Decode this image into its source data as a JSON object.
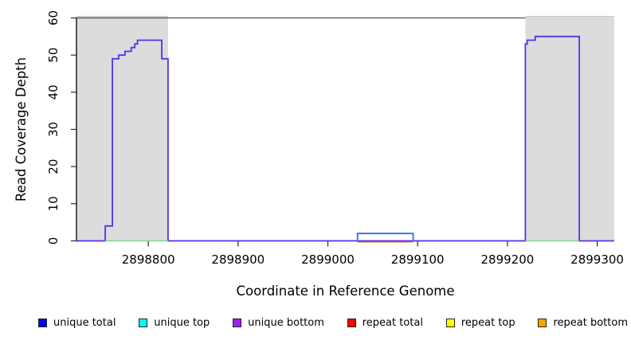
{
  "figure": {
    "background": "#ffffff"
  },
  "chart_data": {
    "type": "line",
    "subtype": "step-coverage",
    "title": "",
    "xlabel": "Coordinate in Reference Genome",
    "ylabel": "Read Coverage Depth",
    "xlim": [
      2898720,
      2899319
    ],
    "ylim": [
      0,
      60
    ],
    "x_ticks": [
      2898800,
      2898900,
      2899000,
      2899100,
      2899200,
      2899300
    ],
    "y_ticks": [
      0,
      10,
      20,
      30,
      40,
      50,
      60
    ],
    "grid": false,
    "axis_color": "#000000",
    "tick_color": "#2b2b2b",
    "shaded_region_color": "#dcdcdc",
    "shaded_regions": [
      {
        "x0": 2898720,
        "x1": 2898822
      },
      {
        "x0": 2899220,
        "x1": 2899319
      }
    ],
    "max_coverage_line": {
      "y": 60,
      "color": "#4d4d4d"
    },
    "series": [
      {
        "name": "unique coverage step line",
        "color": "#5431e9",
        "vertices": [
          [
            2898720,
            0
          ],
          [
            2898752,
            0
          ],
          [
            2898752,
            4
          ],
          [
            2898760,
            4
          ],
          [
            2898760,
            49
          ],
          [
            2898767,
            49
          ],
          [
            2898767,
            50
          ],
          [
            2898774,
            50
          ],
          [
            2898774,
            51
          ],
          [
            2898781,
            51
          ],
          [
            2898781,
            52
          ],
          [
            2898785,
            52
          ],
          [
            2898785,
            53
          ],
          [
            2898788,
            53
          ],
          [
            2898788,
            54
          ],
          [
            2898815,
            54
          ],
          [
            2898815,
            49
          ],
          [
            2898822,
            49
          ],
          [
            2898822,
            0
          ],
          [
            2899220,
            0
          ],
          [
            2899220,
            53
          ],
          [
            2899222,
            53
          ],
          [
            2899222,
            54
          ],
          [
            2899231,
            54
          ],
          [
            2899231,
            55
          ],
          [
            2899280,
            55
          ],
          [
            2899280,
            0
          ],
          [
            2899319,
            0
          ]
        ]
      },
      {
        "name": "unique top coverage segment",
        "color": "#2c6fee",
        "vertices": [
          [
            2899033,
            0
          ],
          [
            2899033,
            2
          ],
          [
            2899095,
            2
          ],
          [
            2899095,
            0
          ]
        ]
      }
    ],
    "zero_level_markers": [
      {
        "name": "repeat total zero segment",
        "color": "#e03c3c",
        "x0": 2899033,
        "x1": 2899095,
        "offset": 1.1
      },
      {
        "name": "zero segment under left peak",
        "color": "#85d485",
        "x0": 2898752,
        "x1": 2898822,
        "offset": 0
      },
      {
        "name": "zero segment under right peak",
        "color": "#85d485",
        "x0": 2899220,
        "x1": 2899280,
        "offset": 0
      }
    ],
    "legend": {
      "position": "bottom",
      "items": [
        {
          "label": "unique total",
          "color": "#0000ff"
        },
        {
          "label": "unique top",
          "color": "#00ffff"
        },
        {
          "label": "unique bottom",
          "color": "#a020f0"
        },
        {
          "label": "repeat total",
          "color": "#ff0000"
        },
        {
          "label": "repeat top",
          "color": "#ffff00"
        },
        {
          "label": "repeat bottom",
          "color": "#ffa500"
        }
      ]
    }
  }
}
